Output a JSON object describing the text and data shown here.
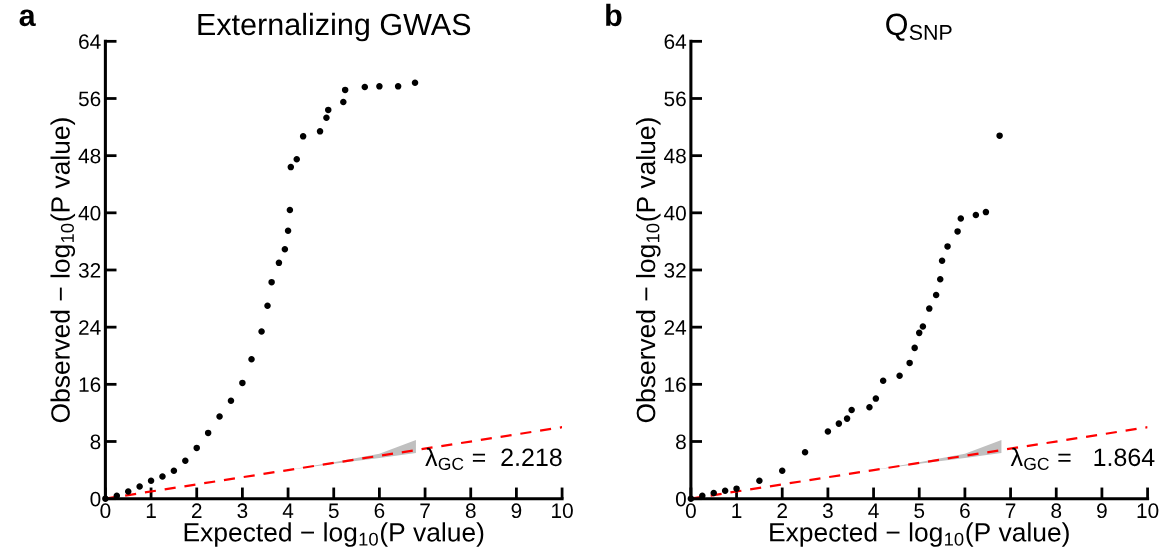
{
  "chart_data": [
    {
      "type": "scatter",
      "title": "Externalizing GWAS",
      "xlabel": "Expected − log$_{10}$(P value)",
      "ylabel": "Observed − log$_{10}$(P value)",
      "xlim": [
        0,
        10
      ],
      "ylim": [
        0,
        64
      ],
      "xticks": [
        0,
        1,
        2,
        3,
        4,
        5,
        6,
        7,
        8,
        9,
        10
      ],
      "yticks": [
        0,
        8,
        16,
        24,
        32,
        40,
        48,
        56,
        64
      ],
      "grid": false,
      "legend": false,
      "marker": "circle",
      "annotations": [
        "a",
        "λ$_{GC}$ =  2.218"
      ],
      "series": [
        {
          "color": "#000000",
          "x": [
            0,
            0.25,
            0.5,
            0.75,
            1,
            1.25,
            1.5,
            1.75,
            2,
            2.25,
            2.5,
            2.75,
            3,
            3.2,
            3.42,
            3.55,
            3.64,
            3.8,
            3.93,
            4.0,
            4.04,
            4.06,
            4.19,
            4.33,
            4.7,
            4.84,
            4.88,
            5.21,
            5.25,
            5.68,
            6.0,
            6.41,
            6.78
          ],
          "values": [
            0,
            0.4,
            1.0,
            1.7,
            2.5,
            3.1,
            3.9,
            5.3,
            7.1,
            9.2,
            11.5,
            13.7,
            16.2,
            19.5,
            23.4,
            27,
            30.3,
            33,
            34.9,
            37.5,
            40.4,
            46.4,
            47.5,
            50.7,
            51.4,
            53.3,
            54.4,
            55.5,
            57.2,
            57.6,
            57.7,
            57.7,
            58.2
          ]
        },
        {
          "type": "line",
          "color": "#ff0000",
          "line_style": "dashed",
          "marker": "none",
          "x": [
            0,
            2,
            4,
            5,
            6,
            6.8,
            10
          ],
          "values": [
            0,
            2,
            4,
            5,
            6,
            6.8,
            10
          ],
          "lower": [
            0,
            2,
            4,
            4.9,
            5.7,
            6.4,
            null
          ],
          "upper": [
            0,
            2,
            4,
            5.1,
            6.3,
            8.2,
            null
          ]
        }
      ]
    },
    {
      "type": "scatter",
      "title": "Q$_{SNP}$",
      "xlabel": "Expected − log$_{10}$(P value)",
      "ylabel": "Observed − log$_{10}$(P value)",
      "xlim": [
        0,
        10
      ],
      "ylim": [
        0,
        64
      ],
      "xticks": [
        0,
        1,
        2,
        3,
        4,
        5,
        6,
        7,
        8,
        9,
        10
      ],
      "yticks": [
        0,
        8,
        16,
        24,
        32,
        40,
        48,
        56,
        64
      ],
      "grid": false,
      "legend": false,
      "marker": "circle",
      "annotations": [
        "b",
        "λ$_{GC}$ =   1.864"
      ],
      "series": [
        {
          "color": "#000000",
          "x": [
            0,
            0.25,
            0.5,
            0.75,
            1,
            1.5,
            2,
            2.5,
            3,
            3.24,
            3.42,
            3.52,
            3.91,
            4.05,
            4.21,
            4.57,
            4.79,
            4.9,
            5.0,
            5.08,
            5.22,
            5.37,
            5.46,
            5.5,
            5.62,
            5.84,
            5.91,
            6.24,
            6.46,
            6.76
          ],
          "values": [
            0,
            0.4,
            0.8,
            1.1,
            1.4,
            2.5,
            3.9,
            6.5,
            9.4,
            10.5,
            11.2,
            12.4,
            12.8,
            14,
            16.5,
            17.2,
            19.0,
            21.1,
            23.2,
            24.1,
            26.6,
            28.5,
            30.7,
            33.3,
            35.3,
            37.4,
            39.2,
            39.7,
            40.1,
            50.8
          ]
        },
        {
          "type": "line",
          "color": "#ff0000",
          "line_style": "dashed",
          "marker": "none",
          "x": [
            0,
            2,
            4,
            5,
            6,
            6.8,
            10
          ],
          "values": [
            0,
            2,
            4,
            5,
            6,
            6.8,
            10
          ],
          "lower": [
            0,
            2,
            4,
            4.9,
            5.7,
            6.4,
            null
          ],
          "upper": [
            0,
            2,
            4,
            5.1,
            6.3,
            8.2,
            null
          ]
        }
      ]
    }
  ]
}
